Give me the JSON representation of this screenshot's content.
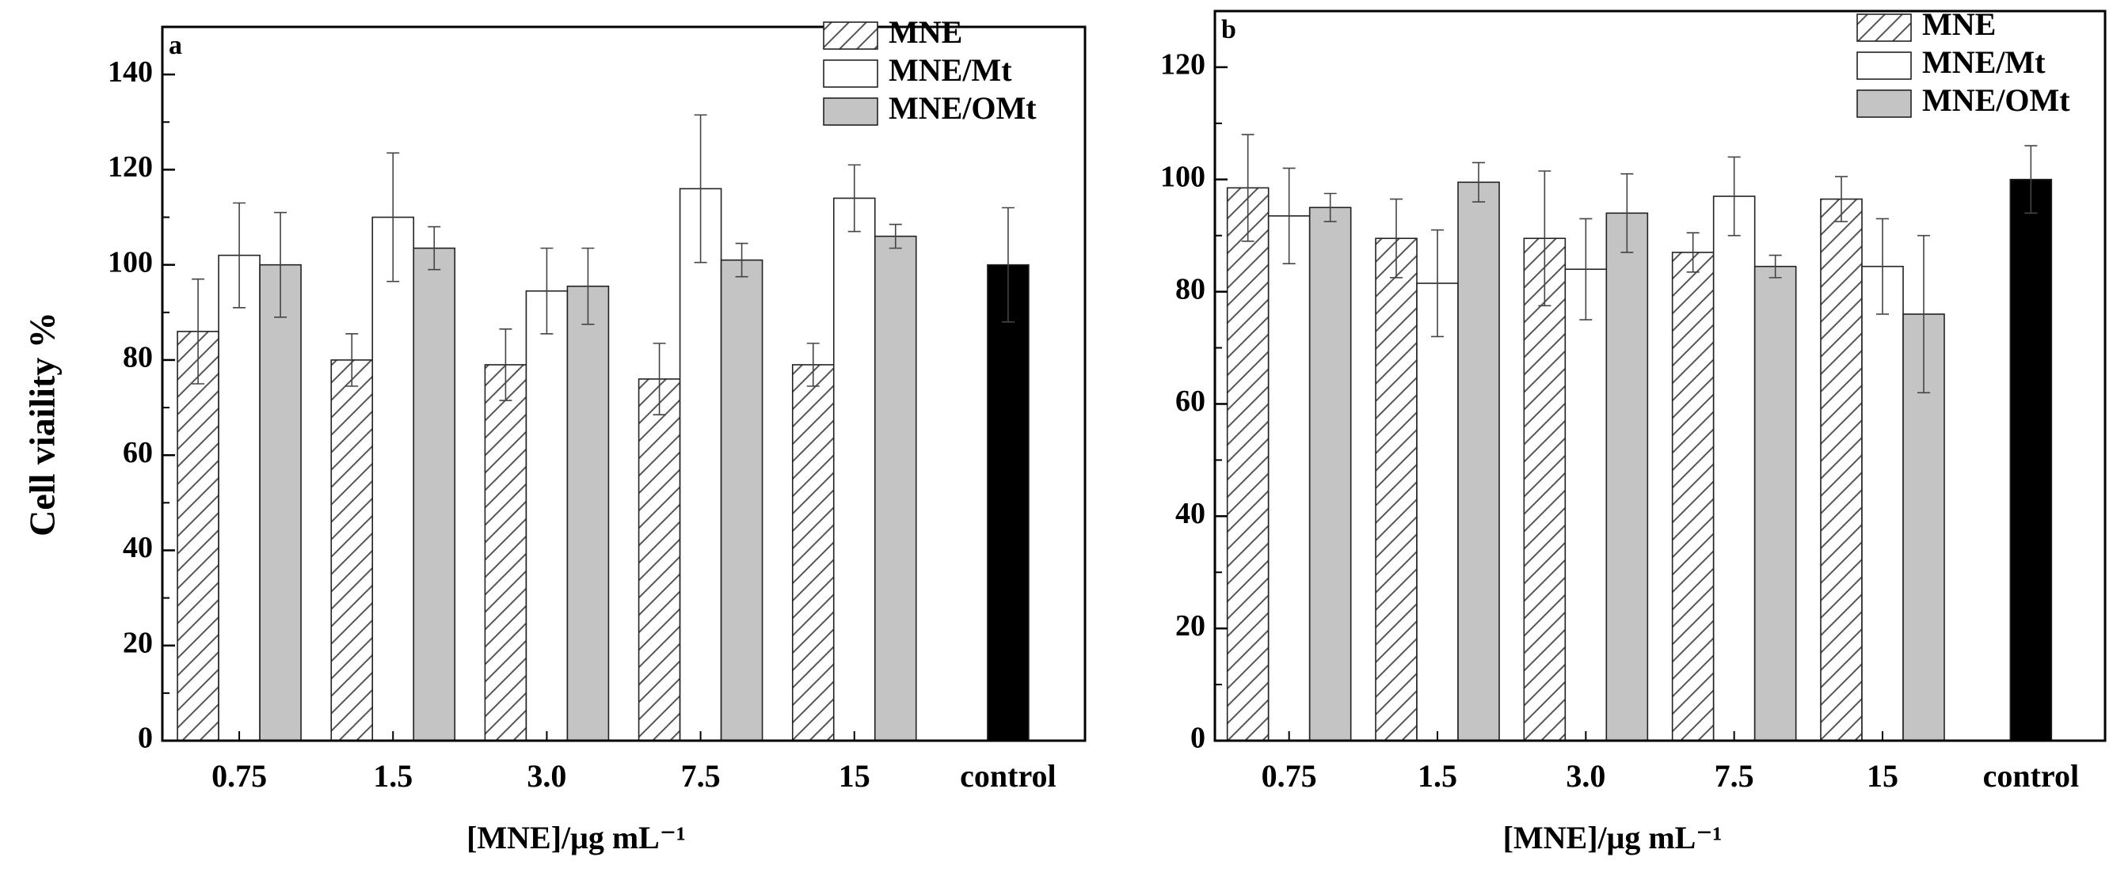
{
  "figure": {
    "ylabel": "Cell viaility %"
  },
  "colors": {
    "MNE": "#ffffff",
    "MNE/Mt": "#ffffff",
    "MNE/OMt": "#c4c4c4",
    "control": "#000000",
    "axis": "#000000"
  },
  "chart_data": [
    {
      "type": "bar",
      "panel": "a",
      "title": "",
      "xlabel": "[MNE]/μg mL⁻¹",
      "ylabel": "Cell viaility %",
      "ylim": [
        0,
        150
      ],
      "yticks": [
        0,
        20,
        40,
        60,
        80,
        100,
        120,
        140
      ],
      "categories": [
        "0.75",
        "1.5",
        "3.0",
        "7.5",
        "15",
        "control"
      ],
      "legend_position": "top-right",
      "series": [
        {
          "name": "MNE",
          "pattern": "hatch",
          "values": [
            86,
            80,
            79,
            76,
            79,
            null
          ],
          "errors": [
            11,
            5.5,
            7.5,
            7.5,
            4.5,
            null
          ]
        },
        {
          "name": "MNE/Mt",
          "pattern": "open",
          "values": [
            102,
            110,
            94.5,
            116,
            114,
            null
          ],
          "errors": [
            11,
            13.5,
            9,
            15.5,
            7,
            null
          ]
        },
        {
          "name": "MNE/OMt",
          "pattern": "solid",
          "values": [
            100,
            103.5,
            95.5,
            101,
            106,
            null
          ],
          "errors": [
            11,
            4.5,
            8,
            3.5,
            2.5,
            null
          ]
        },
        {
          "name": "control",
          "pattern": "black",
          "legend": false,
          "values": [
            null,
            null,
            null,
            null,
            null,
            100
          ],
          "errors": [
            null,
            null,
            null,
            null,
            null,
            12
          ]
        }
      ]
    },
    {
      "type": "bar",
      "panel": "b",
      "title": "",
      "xlabel": "[MNE]/μg mL⁻¹",
      "ylabel": "",
      "ylim": [
        0,
        130
      ],
      "yticks": [
        0,
        20,
        40,
        60,
        80,
        100,
        120
      ],
      "categories": [
        "0.75",
        "1.5",
        "3.0",
        "7.5",
        "15",
        "control"
      ],
      "legend_position": "top-right",
      "series": [
        {
          "name": "MNE",
          "pattern": "hatch",
          "values": [
            98.5,
            89.5,
            89.5,
            87,
            96.5,
            null
          ],
          "errors": [
            9.5,
            7,
            12,
            3.5,
            4,
            null
          ]
        },
        {
          "name": "MNE/Mt",
          "pattern": "open",
          "values": [
            93.5,
            81.5,
            84,
            97,
            84.5,
            null
          ],
          "errors": [
            8.5,
            9.5,
            9,
            7,
            8.5,
            null
          ]
        },
        {
          "name": "MNE/OMt",
          "pattern": "solid",
          "values": [
            95,
            99.5,
            94,
            84.5,
            76,
            null
          ],
          "errors": [
            2.5,
            3.5,
            7,
            2,
            14,
            null
          ]
        },
        {
          "name": "control",
          "pattern": "black",
          "legend": false,
          "values": [
            null,
            null,
            null,
            null,
            null,
            100
          ],
          "errors": [
            null,
            null,
            null,
            null,
            null,
            6
          ]
        }
      ]
    }
  ]
}
